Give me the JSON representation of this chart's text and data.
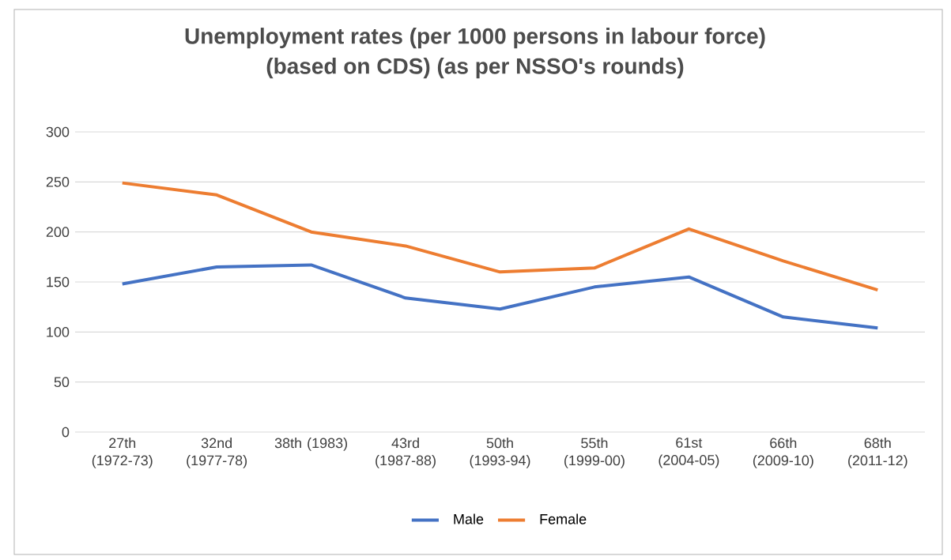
{
  "chart_data": {
    "type": "line",
    "title": "Unemployment rates (per 1000 persons in labour force)",
    "subtitle": "(based on CDS) (as per NSSO's rounds)",
    "categories": [
      "27th (1972-73)",
      "32nd (1977-78)",
      "38th (1983)",
      "43rd (1987-88)",
      "50th (1993-94)",
      "55th (1999-00)",
      "61st (2004-05)",
      "66th (2009-10)",
      "68th (2011-12)"
    ],
    "series": [
      {
        "name": "Male",
        "color": "#4472c4",
        "values": [
          148,
          165,
          167,
          134,
          123,
          145,
          155,
          115,
          104
        ]
      },
      {
        "name": "Female",
        "color": "#ed7d31",
        "values": [
          249,
          237,
          200,
          186,
          160,
          164,
          203,
          171,
          142
        ]
      }
    ],
    "ylim": [
      0,
      300
    ],
    "yticks": [
      0,
      50,
      100,
      150,
      200,
      250,
      300
    ],
    "grid": "y",
    "legend": "bottom",
    "marker": "none",
    "line_style": "solid"
  }
}
